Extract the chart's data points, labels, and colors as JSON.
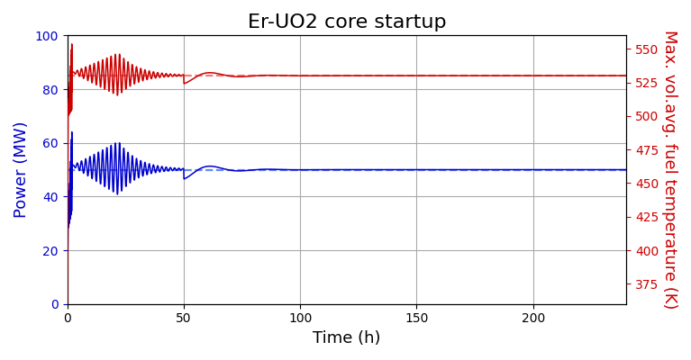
{
  "title": "Er-UO2 core startup",
  "xlabel": "Time (h)",
  "ylabel_left": "Power (MW)",
  "ylabel_right": "Max. vol.avg. fuel temperature (K)",
  "ylim_left": [
    0,
    100
  ],
  "ylim_right": [
    360,
    560
  ],
  "xlim": [
    0,
    240
  ],
  "yticks_left": [
    0,
    20,
    40,
    60,
    80,
    100
  ],
  "yticks_right": [
    375,
    400,
    425,
    450,
    475,
    500,
    525,
    550
  ],
  "xticks": [
    0,
    50,
    100,
    150,
    200
  ],
  "power_setpoint": 50.0,
  "temp_setpoint": 530.0,
  "blue_color": "#0000cc",
  "red_color": "#cc0000",
  "dashed_color_blue": "#6688ff",
  "dashed_color_red": "#ff7777",
  "grid_color": "#aaaaaa",
  "background_color": "#ffffff",
  "title_fontsize": 16,
  "label_fontsize": 13
}
